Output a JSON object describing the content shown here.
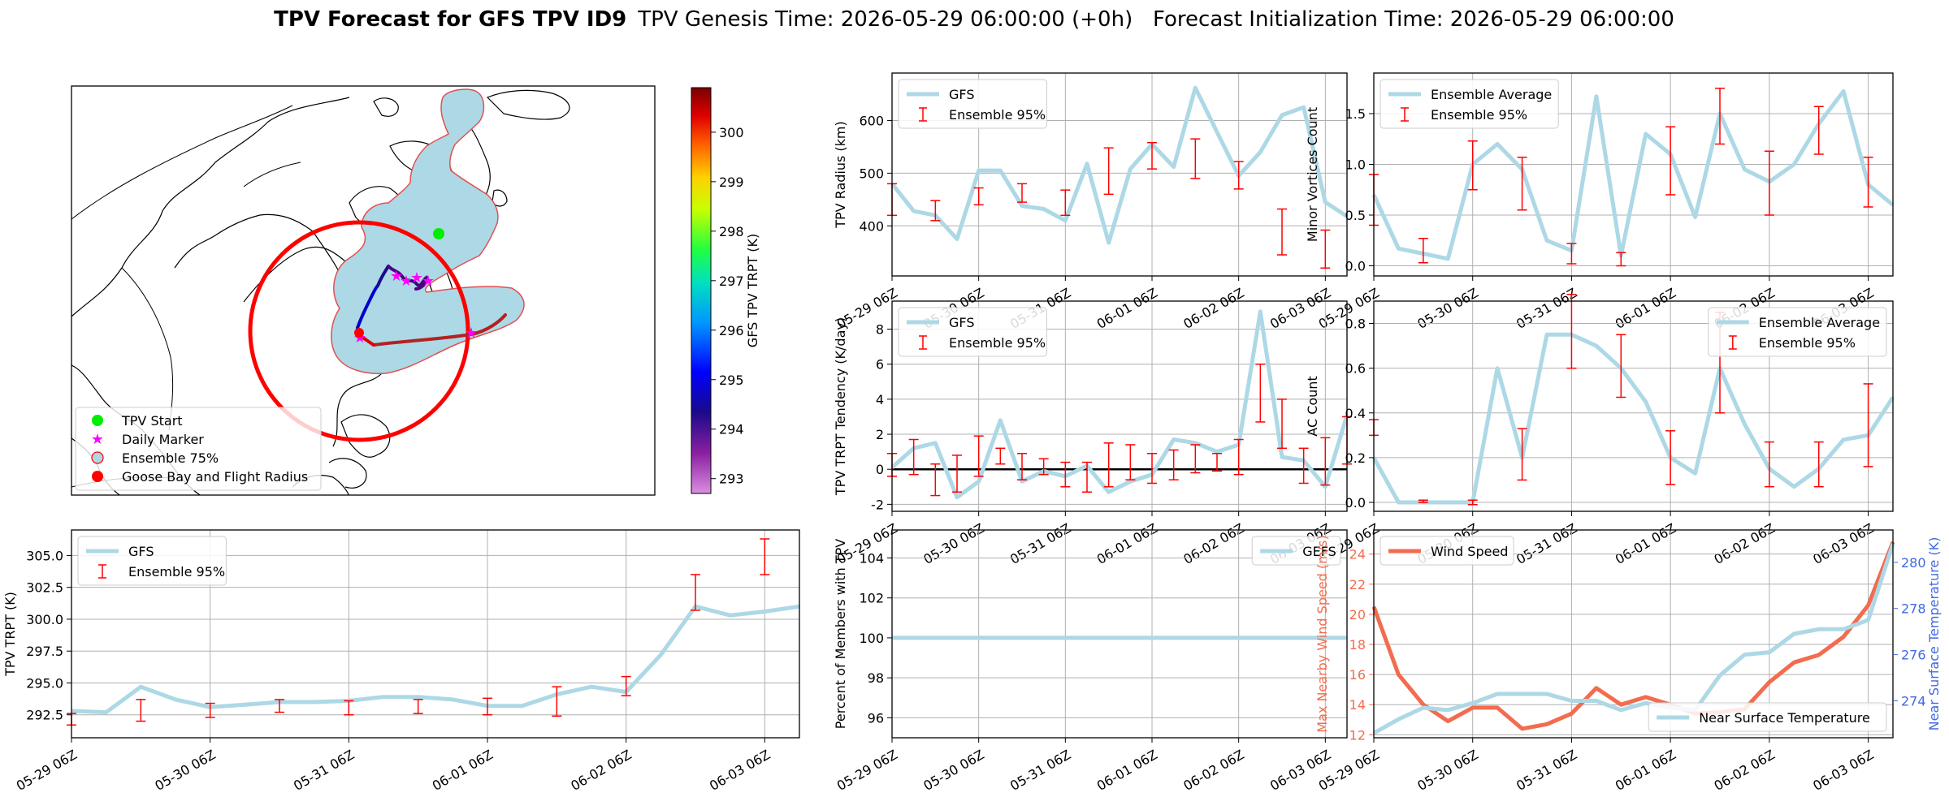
{
  "header": {
    "title_bold": "TPV Forecast for GFS TPV ID9",
    "title_rest": "TPV Genesis Time: 2026-05-29 06:00:00 (+0h)   Forecast Initialization Time: 2026-05-29 06:00:00"
  },
  "colors": {
    "gfs": "#add8e6",
    "ens": "#ff0000",
    "wind": "#f26c4f",
    "temp": "#4169e1",
    "shade": "#add8e6",
    "track": "#b22222"
  },
  "map": {
    "legend": [
      {
        "label": "TPV Start",
        "marker": "circle",
        "color": "#00ee00"
      },
      {
        "label": "Daily Marker",
        "marker": "star",
        "color": "#ff00ff"
      },
      {
        "label": "Ensemble 75%",
        "marker": "circle",
        "color": "#add8e6"
      },
      {
        "label": "Goose Bay and Flight Radius",
        "marker": "circle",
        "color": "#ff0000"
      }
    ],
    "colorbar": {
      "label": "GFS TPV TRPT (K)",
      "ticks": [
        293,
        294,
        295,
        296,
        297,
        298,
        299,
        300
      ],
      "range": [
        292.7,
        300.9
      ]
    }
  },
  "chart_data": [
    {
      "id": "radius",
      "type": "line",
      "ylabel": "TPV Radius (km)",
      "ylim": [
        305,
        690
      ],
      "yticks": [
        400,
        500,
        600
      ],
      "xticks": [
        "05-29 06Z",
        "05-30 06Z",
        "05-31 06Z",
        "06-01 06Z",
        "06-02 06Z",
        "06-03 06Z"
      ],
      "legend": {
        "pos": "top-left",
        "items": [
          "GFS",
          "Ensemble 95%"
        ]
      },
      "series": [
        {
          "name": "GFS",
          "values": [
            480,
            428,
            420,
            375,
            505,
            505,
            438,
            432,
            410,
            518,
            368,
            508,
            555,
            512,
            662,
            578,
            495,
            540,
            610,
            625,
            445,
            418
          ]
        }
      ],
      "errorbars": [
        {
          "i": 0,
          "lo": 420,
          "hi": 480
        },
        {
          "i": 2,
          "lo": 410,
          "hi": 448
        },
        {
          "i": 4,
          "lo": 440,
          "hi": 472
        },
        {
          "i": 6,
          "lo": 445,
          "hi": 480
        },
        {
          "i": 8,
          "lo": 420,
          "hi": 468
        },
        {
          "i": 10,
          "lo": 460,
          "hi": 548
        },
        {
          "i": 12,
          "lo": 508,
          "hi": 558
        },
        {
          "i": 14,
          "lo": 490,
          "hi": 565
        },
        {
          "i": 16,
          "lo": 470,
          "hi": 522
        },
        {
          "i": 18,
          "lo": 345,
          "hi": 432
        },
        {
          "i": 20,
          "lo": 320,
          "hi": 392
        }
      ]
    },
    {
      "id": "minor",
      "type": "line",
      "ylabel": "Minor Vortices Count",
      "ylim": [
        -0.1,
        1.9
      ],
      "yticks": [
        0.0,
        0.5,
        1.0,
        1.5
      ],
      "yfmt": 1,
      "xticks": [
        "05-29 06Z",
        "05-30 06Z",
        "05-31 06Z",
        "06-01 06Z",
        "06-02 06Z",
        "06-03 06Z"
      ],
      "legend": {
        "pos": "top-left",
        "items": [
          "Ensemble Average",
          "Ensemble 95%"
        ]
      },
      "series": [
        {
          "name": "Ensemble Average",
          "values": [
            0.7,
            0.17,
            0.12,
            0.07,
            1.0,
            1.2,
            0.95,
            0.25,
            0.15,
            1.67,
            0.1,
            1.3,
            1.1,
            0.48,
            1.5,
            0.95,
            0.83,
            1.0,
            1.4,
            1.72,
            0.8,
            0.6
          ]
        }
      ],
      "errorbars": [
        {
          "i": 0,
          "lo": 0.4,
          "hi": 0.9
        },
        {
          "i": 2,
          "lo": 0.03,
          "hi": 0.27
        },
        {
          "i": 4,
          "lo": 0.75,
          "hi": 1.23
        },
        {
          "i": 6,
          "lo": 0.55,
          "hi": 1.07
        },
        {
          "i": 8,
          "lo": 0.02,
          "hi": 0.22
        },
        {
          "i": 10,
          "lo": 0.0,
          "hi": 0.13
        },
        {
          "i": 12,
          "lo": 0.7,
          "hi": 1.37
        },
        {
          "i": 14,
          "lo": 1.2,
          "hi": 1.75
        },
        {
          "i": 16,
          "lo": 0.5,
          "hi": 1.13
        },
        {
          "i": 18,
          "lo": 1.1,
          "hi": 1.57
        },
        {
          "i": 20,
          "lo": 0.58,
          "hi": 1.07
        }
      ]
    },
    {
      "id": "tendency",
      "type": "line",
      "ylabel": "TPV TRPT Tendency (K/day)",
      "ylim": [
        -2.4,
        9.6
      ],
      "yticks": [
        -2,
        0,
        2,
        4,
        6,
        8
      ],
      "zeroline": true,
      "xticks": [
        "05-29 06Z",
        "05-30 06Z",
        "05-31 06Z",
        "06-01 06Z",
        "06-02 06Z",
        "06-03 06Z"
      ],
      "legend": {
        "pos": "top-left",
        "items": [
          "GFS",
          "Ensemble 95%"
        ]
      },
      "series": [
        {
          "name": "GFS",
          "values": [
            0.1,
            1.2,
            1.5,
            -1.6,
            -0.7,
            2.8,
            -0.7,
            -0.1,
            -0.4,
            0.2,
            -1.3,
            -0.7,
            -0.3,
            1.7,
            1.5,
            1.0,
            1.4,
            9.0,
            0.7,
            0.5,
            -1.0,
            3.1
          ]
        }
      ],
      "errorbars": [
        {
          "i": 0,
          "lo": -0.4,
          "hi": 0.9
        },
        {
          "i": 1,
          "lo": -0.3,
          "hi": 1.7
        },
        {
          "i": 2,
          "lo": -1.5,
          "hi": 0.3
        },
        {
          "i": 3,
          "lo": -1.3,
          "hi": 0.8
        },
        {
          "i": 4,
          "lo": -0.4,
          "hi": 1.9
        },
        {
          "i": 5,
          "lo": 0.3,
          "hi": 1.2
        },
        {
          "i": 6,
          "lo": -0.6,
          "hi": 0.9
        },
        {
          "i": 7,
          "lo": -0.3,
          "hi": 0.6
        },
        {
          "i": 8,
          "lo": -1.0,
          "hi": 0.4
        },
        {
          "i": 9,
          "lo": -1.3,
          "hi": 0.4
        },
        {
          "i": 10,
          "lo": -1.0,
          "hi": 1.5
        },
        {
          "i": 11,
          "lo": -0.6,
          "hi": 1.4
        },
        {
          "i": 12,
          "lo": -0.8,
          "hi": 0.9
        },
        {
          "i": 13,
          "lo": -0.6,
          "hi": 1.1
        },
        {
          "i": 14,
          "lo": -0.2,
          "hi": 1.4
        },
        {
          "i": 15,
          "lo": -0.1,
          "hi": 0.9
        },
        {
          "i": 16,
          "lo": -0.3,
          "hi": 1.7
        },
        {
          "i": 17,
          "lo": 2.7,
          "hi": 6.0
        },
        {
          "i": 18,
          "lo": 1.2,
          "hi": 4.0
        },
        {
          "i": 19,
          "lo": -0.8,
          "hi": 1.2
        },
        {
          "i": 20,
          "lo": -0.9,
          "hi": 1.8
        },
        {
          "i": 21,
          "lo": 0.3,
          "hi": 3.0
        }
      ]
    },
    {
      "id": "ac",
      "type": "line",
      "ylabel": "AC Count",
      "ylim": [
        -0.04,
        0.9
      ],
      "yticks": [
        0.0,
        0.2,
        0.4,
        0.6,
        0.8
      ],
      "yfmt": 1,
      "xticks": [
        "05-29 06Z",
        "05-30 06Z",
        "05-31 06Z",
        "06-01 06Z",
        "06-02 06Z",
        "06-03 06Z"
      ],
      "legend": {
        "pos": "top-right",
        "items": [
          "Ensemble Average",
          "Ensemble 95%"
        ]
      },
      "series": [
        {
          "name": "Ensemble Average",
          "values": [
            0.2,
            0.0,
            0.0,
            0.0,
            0.0,
            0.6,
            0.2,
            0.75,
            0.75,
            0.7,
            0.6,
            0.45,
            0.2,
            0.13,
            0.6,
            0.35,
            0.15,
            0.07,
            0.15,
            0.28,
            0.3,
            0.47
          ]
        }
      ],
      "errorbars": [
        {
          "i": 0,
          "lo": 0.3,
          "hi": 0.37
        },
        {
          "i": 2,
          "lo": 0.0,
          "hi": 0.01
        },
        {
          "i": 4,
          "lo": -0.01,
          "hi": 0.01
        },
        {
          "i": 6,
          "lo": 0.1,
          "hi": 0.33
        },
        {
          "i": 8,
          "lo": 0.6,
          "hi": 0.93
        },
        {
          "i": 10,
          "lo": 0.47,
          "hi": 0.75
        },
        {
          "i": 12,
          "lo": 0.08,
          "hi": 0.32
        },
        {
          "i": 14,
          "lo": 0.4,
          "hi": 0.85
        },
        {
          "i": 16,
          "lo": 0.07,
          "hi": 0.27
        },
        {
          "i": 18,
          "lo": 0.07,
          "hi": 0.27
        },
        {
          "i": 20,
          "lo": 0.16,
          "hi": 0.53
        }
      ]
    },
    {
      "id": "trpt",
      "type": "line",
      "ylabel": "TPV TRPT (K)",
      "ylim": [
        290.7,
        307.0
      ],
      "yticks": [
        292.5,
        295.0,
        297.5,
        300.0,
        302.5,
        305.0
      ],
      "yfmt": 1,
      "xticks": [
        "05-29 06Z",
        "05-30 06Z",
        "05-31 06Z",
        "06-01 06Z",
        "06-02 06Z",
        "06-03 06Z"
      ],
      "legend": {
        "pos": "top-left",
        "items": [
          "GFS",
          "Ensemble 95%"
        ]
      },
      "series": [
        {
          "name": "GFS",
          "values": [
            292.8,
            292.7,
            294.7,
            293.7,
            293.1,
            293.3,
            293.5,
            293.5,
            293.6,
            293.9,
            293.9,
            293.7,
            293.2,
            293.2,
            294.1,
            294.7,
            294.3,
            297.2,
            301.0,
            300.3,
            300.6,
            301.0
          ]
        }
      ],
      "errorbars": [
        {
          "i": 0,
          "lo": 291.7,
          "hi": 292.6
        },
        {
          "i": 2,
          "lo": 292.0,
          "hi": 293.7
        },
        {
          "i": 4,
          "lo": 292.3,
          "hi": 293.4
        },
        {
          "i": 6,
          "lo": 292.7,
          "hi": 293.7
        },
        {
          "i": 8,
          "lo": 292.5,
          "hi": 293.6
        },
        {
          "i": 10,
          "lo": 292.6,
          "hi": 293.7
        },
        {
          "i": 12,
          "lo": 292.5,
          "hi": 293.8
        },
        {
          "i": 14,
          "lo": 292.4,
          "hi": 294.7
        },
        {
          "i": 16,
          "lo": 294.0,
          "hi": 295.5
        },
        {
          "i": 18,
          "lo": 300.7,
          "hi": 303.5
        },
        {
          "i": 20,
          "lo": 303.5,
          "hi": 306.3
        }
      ]
    },
    {
      "id": "percent",
      "type": "line",
      "ylabel": "Percent of Members with TPV",
      "ylim": [
        95.0,
        105.4
      ],
      "yticks": [
        96,
        98,
        100,
        102,
        104
      ],
      "xticks": [
        "05-29 06Z",
        "05-30 06Z",
        "05-31 06Z",
        "06-01 06Z",
        "06-02 06Z",
        "06-03 06Z"
      ],
      "legend": {
        "pos": "top-right",
        "items": [
          "GEFS"
        ]
      },
      "series": [
        {
          "name": "GEFS",
          "values": [
            100,
            100,
            100,
            100,
            100,
            100,
            100,
            100,
            100,
            100,
            100,
            100,
            100,
            100,
            100,
            100,
            100,
            100,
            100,
            100,
            100,
            100
          ]
        }
      ],
      "errorbars": []
    },
    {
      "id": "wind",
      "type": "line",
      "ylabel": "Max Nearby Wind Speed (m/s)",
      "ylabel2": "Near Surface Temperature (K)",
      "ylim": [
        11.8,
        25.6
      ],
      "yticks": [
        12,
        14,
        16,
        18,
        20,
        22,
        24
      ],
      "ylim2": [
        272.4,
        281.4
      ],
      "yticks2": [
        274,
        276,
        278,
        280
      ],
      "xticks": [
        "05-29 06Z",
        "05-30 06Z",
        "05-31 06Z",
        "06-01 06Z",
        "06-02 06Z",
        "06-03 06Z"
      ],
      "legend": {
        "pos": "top-left",
        "items": [
          "Wind Speed"
        ]
      },
      "legend2": {
        "pos": "bottom-right",
        "items": [
          "Near Surface Temperature"
        ]
      },
      "series": [
        {
          "name": "Wind Speed",
          "axis": 1,
          "values": [
            20.5,
            16.0,
            14.0,
            12.9,
            13.8,
            13.8,
            12.4,
            12.7,
            13.4,
            15.1,
            14.0,
            14.5,
            14.0,
            13.4,
            13.5,
            13.7,
            15.5,
            16.8,
            17.3,
            18.5,
            20.6,
            24.8
          ]
        },
        {
          "name": "Near Surface Temperature",
          "axis": 2,
          "values": [
            272.6,
            273.2,
            273.7,
            273.6,
            273.9,
            274.3,
            274.3,
            274.3,
            274.0,
            274.0,
            273.6,
            273.9,
            273.7,
            273.6,
            275.1,
            276.0,
            276.1,
            276.9,
            277.1,
            277.1,
            277.5,
            280.8
          ]
        }
      ],
      "errorbars": []
    }
  ]
}
